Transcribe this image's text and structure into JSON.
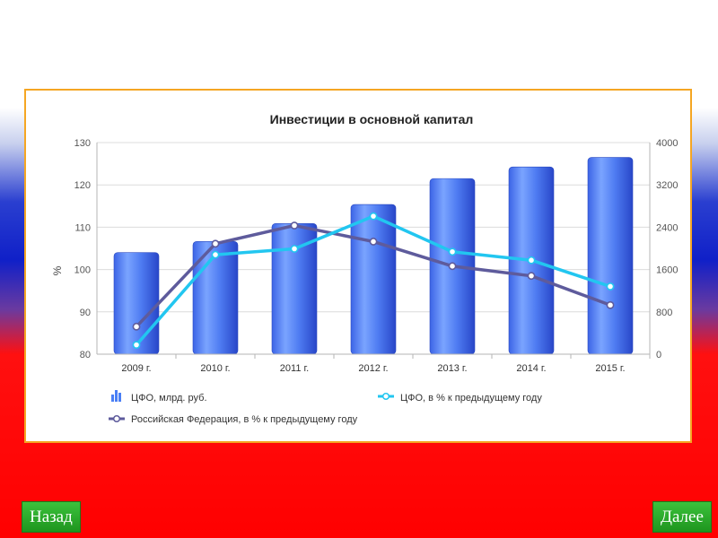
{
  "navigation": {
    "back_label": "Назад",
    "next_label": "Далее"
  },
  "colors": {
    "bar": "#4a7ff5",
    "line_cfo": "#22c6f0",
    "line_rf": "#5e5b9c",
    "frame": "#f5a623"
  },
  "chart_data": {
    "type": "bar",
    "title": "Инвестиции в основной капитал",
    "ylabel": "%",
    "y2label": "",
    "ylim": [
      80,
      130
    ],
    "y2lim": [
      0,
      4000
    ],
    "yticks": [
      "130",
      "120",
      "110",
      "100",
      "90",
      "80"
    ],
    "y2ticks": [
      "4000",
      "3200",
      "2400",
      "1600",
      "800",
      "0"
    ],
    "categories": [
      "2009 г.",
      "2010 г.",
      "2011 г.",
      "2012 г.",
      "2013 г.",
      "2014 г.",
      "2015 г."
    ],
    "series": [
      {
        "name": "ЦФО, млрд. руб.",
        "type": "bar",
        "axis": "right",
        "values": [
          1920,
          2130,
          2470,
          2830,
          3320,
          3540,
          3720
        ]
      },
      {
        "name": "ЦФО, в % к предыдущему году",
        "type": "line",
        "axis": "left",
        "values": [
          82.2,
          103.5,
          104.9,
          112.6,
          104.2,
          102.2,
          96.0
        ]
      },
      {
        "name": "Российская Федерация, в % к предыдущему году",
        "type": "line",
        "axis": "left",
        "values": [
          86.5,
          106.1,
          110.4,
          106.6,
          100.8,
          98.5,
          91.6
        ]
      }
    ],
    "grid": true,
    "legend": "bottom"
  }
}
